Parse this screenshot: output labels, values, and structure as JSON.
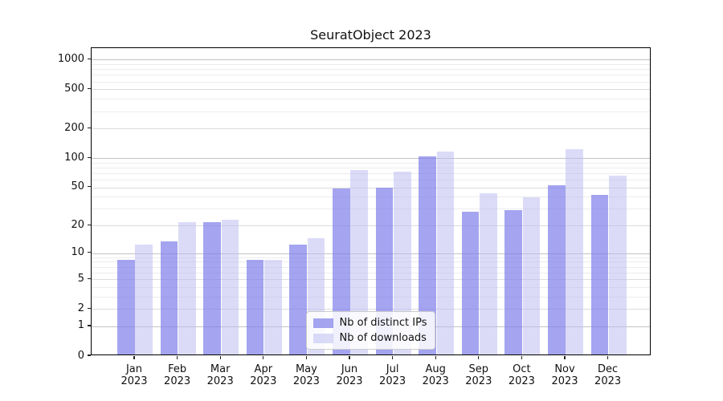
{
  "chart_data": {
    "type": "bar",
    "title": "SeuratObject 2023",
    "months": [
      "Jan",
      "Feb",
      "Mar",
      "Apr",
      "May",
      "Jun",
      "Jul",
      "Aug",
      "Sep",
      "Oct",
      "Nov",
      "Dec"
    ],
    "year": "2023",
    "series": [
      {
        "name": "Nb of distinct IPs",
        "color_hex": "#7d7de9",
        "alpha": 0.7,
        "values": [
          8,
          13,
          21,
          8,
          12,
          47,
          48,
          100,
          27,
          28,
          51,
          40
        ]
      },
      {
        "name": "Nb of downloads",
        "color_hex": "#bebef3",
        "alpha": 0.55,
        "values": [
          12,
          21,
          22,
          8,
          14,
          72,
          70,
          112,
          42,
          38,
          118,
          64
        ]
      }
    ],
    "xlabel": "",
    "ylabel": "",
    "y_axis": {
      "scale": "log10(1+x)",
      "tick_values": [
        0,
        1,
        2,
        5,
        10,
        20,
        50,
        100,
        200,
        500,
        1000
      ],
      "tick_labels": [
        "0",
        "1",
        "2",
        "5",
        "10",
        "20",
        "50",
        "100",
        "200",
        "500",
        "1000"
      ],
      "range": [
        0,
        1285
      ]
    },
    "grid": {
      "horizontal": true,
      "minor_values": [
        3,
        4,
        6,
        7,
        8,
        9,
        30,
        40,
        60,
        70,
        80,
        90,
        300,
        400,
        600,
        700,
        800,
        900
      ]
    },
    "legend_position": "lower center"
  },
  "colors": {
    "background": "#ffffff",
    "grid_major": "#c3c3c3",
    "grid_labeled_minor": "#dcdcdc",
    "grid_minor": "#ececec",
    "axis": "#000000",
    "text": "#111111"
  }
}
